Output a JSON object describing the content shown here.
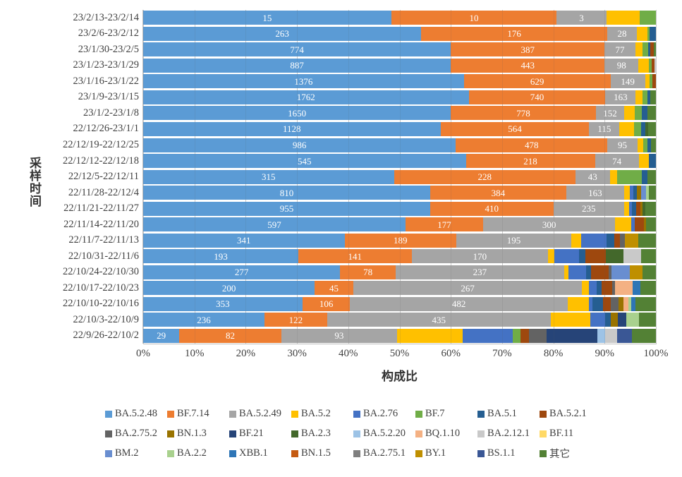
{
  "chart_data": {
    "type": "bar",
    "variant": "horizontal_stacked_100pct",
    "xlabel": "构成比",
    "ylabel": "采样时间",
    "xlim": [
      0,
      100
    ],
    "grid": true,
    "legend_position": "bottom",
    "x_ticks": [
      "0%",
      "10%",
      "20%",
      "30%",
      "40%",
      "50%",
      "60%",
      "70%",
      "80%",
      "90%",
      "100%"
    ],
    "labeled_series": [
      "BA.5.2.48",
      "BF.7.14",
      "BA.5.2.49"
    ],
    "series": [
      {
        "name": "BA.5.2.48",
        "color": "#5B9BD5"
      },
      {
        "name": "BF.7.14",
        "color": "#ED7D31"
      },
      {
        "name": "BA.5.2.49",
        "color": "#A5A5A5"
      },
      {
        "name": "BA.5.2",
        "color": "#FFC000"
      },
      {
        "name": "BA.2.76",
        "color": "#4472C4"
      },
      {
        "name": "BF.7",
        "color": "#70AD47"
      },
      {
        "name": "BA.5.1",
        "color": "#255E91"
      },
      {
        "name": "BA.5.2.1",
        "color": "#9E480E"
      },
      {
        "name": "BA.2.75.2",
        "color": "#636363"
      },
      {
        "name": "BN.1.3",
        "color": "#997300"
      },
      {
        "name": "BF.21",
        "color": "#264478"
      },
      {
        "name": "BA.2.3",
        "color": "#43682B"
      },
      {
        "name": "BA.5.2.20",
        "color": "#9DC3E6"
      },
      {
        "name": "BQ.1.10",
        "color": "#F4B183"
      },
      {
        "name": "BA.2.12.1",
        "color": "#C9C9C9"
      },
      {
        "name": "BF.11",
        "color": "#FFD966"
      },
      {
        "name": "BM.2",
        "color": "#698ED0"
      },
      {
        "name": "BA.2.2",
        "color": "#A9D18E"
      },
      {
        "name": "XBB.1",
        "color": "#2E75B6"
      },
      {
        "name": "BN.1.5",
        "color": "#C55A11"
      },
      {
        "name": "BA.2.75.1",
        "color": "#7F7F7F"
      },
      {
        "name": "BY.1",
        "color": "#BF8F00"
      },
      {
        "name": "BS.1.1",
        "color": "#3A5795"
      },
      {
        "name": "其它",
        "color": "#538135"
      }
    ],
    "rows": [
      {
        "period": "23/2/13-23/2/14",
        "counts": {
          "BA.5.2.48": 15,
          "BF.7.14": 10,
          "BA.5.2.49": 3,
          "BA.5.2": 2,
          "BF.7": 1
        }
      },
      {
        "period": "23/2/6-23/2/12",
        "counts": {
          "BA.5.2.48": 263,
          "BF.7.14": 176,
          "BA.5.2.49": 28,
          "BA.5.2": 10,
          "BF.7": 2,
          "BA.5.1": 6
        }
      },
      {
        "period": "23/1/30-23/2/5",
        "counts": {
          "BA.5.2.48": 774,
          "BF.7.14": 387,
          "BA.5.2.49": 77,
          "BA.5.2": 19,
          "BF.7": 13,
          "BA.5.1": 5,
          "BA.5.2.1": 10,
          "其它": 5
        }
      },
      {
        "period": "23/1/23-23/1/29",
        "counts": {
          "BA.5.2.48": 887,
          "BF.7.14": 443,
          "BA.5.2.49": 98,
          "BA.5.2": 30,
          "BF.7": 8,
          "BA.5.2.1": 7,
          "BA.2.12.1": 5
        }
      },
      {
        "period": "23/1/16-23/1/22",
        "counts": {
          "BA.5.2.48": 1376,
          "BF.7.14": 629,
          "BA.5.2.49": 149,
          "BA.5.2": 20,
          "BF.7": 12,
          "BA.5.2.1": 14
        }
      },
      {
        "period": "23/1/9-23/1/15",
        "counts": {
          "BA.5.2.48": 1762,
          "BF.7.14": 740,
          "BA.5.2.49": 163,
          "BA.5.2": 36,
          "BF.7": 28,
          "BA.5.1": 17,
          "其它": 29
        }
      },
      {
        "period": "23/1/2-23/1/8",
        "counts": {
          "BA.5.2.48": 1650,
          "BF.7.14": 778,
          "BA.5.2.49": 152,
          "BA.5.2": 55,
          "BF.7": 41,
          "BA.5.1": 27,
          "其它": 47
        }
      },
      {
        "period": "22/12/26-23/1/1",
        "counts": {
          "BA.5.2.48": 1128,
          "BF.7.14": 564,
          "BA.5.2.49": 115,
          "BA.5.2": 56,
          "BF.7": 27,
          "BA.5.1": 16,
          "BA.2.3": 10,
          "其它": 29
        }
      },
      {
        "period": "22/12/19-22/12/25",
        "counts": {
          "BA.5.2.48": 986,
          "BF.7.14": 478,
          "BA.5.2.49": 95,
          "BA.5.2": 19,
          "BF.7": 13,
          "BA.5.1": 10,
          "其它": 16
        }
      },
      {
        "period": "22/12/12-22/12/18",
        "counts": {
          "BA.5.2.48": 545,
          "BF.7.14": 218,
          "BA.5.2.49": 74,
          "BA.5.2": 17,
          "BA.5.1": 12
        }
      },
      {
        "period": "22/12/5-22/12/11",
        "counts": {
          "BA.5.2.48": 315,
          "BF.7.14": 228,
          "BA.5.2.49": 43,
          "BA.5.2": 9,
          "BF.7": 31,
          "BA.5.1": 7,
          "其它": 11
        }
      },
      {
        "period": "22/11/28-22/12/4",
        "counts": {
          "BA.5.2.48": 810,
          "BF.7.14": 384,
          "BA.5.2.49": 163,
          "BA.5.2": 16,
          "BA.2.76": 10,
          "BA.5.1": 10,
          "BN.1.3": 13,
          "BM.2": 13,
          "BA.2.2": 8,
          "其它": 20
        }
      },
      {
        "period": "22/11/21-22/11/27",
        "counts": {
          "BA.5.2.48": 955,
          "BF.7.14": 410,
          "BA.5.2.49": 235,
          "BA.5.2": 18,
          "BA.2.76": 8,
          "BA.5.1": 15,
          "BA.5.2.1": 13,
          "BN.1.3": 8,
          "BA.2.3": 8,
          "其它": 36
        }
      },
      {
        "period": "22/11/14-22/11/20",
        "counts": {
          "BA.5.2.48": 597,
          "BF.7.14": 177,
          "BA.5.2.49": 300,
          "BA.5.2": 37,
          "BA.2.76": 8,
          "BA.5.2.1": 20,
          "BN.1.3": 6,
          "其它": 22
        }
      },
      {
        "period": "22/11/7-22/11/13",
        "counts": {
          "BA.5.2.48": 341,
          "BF.7.14": 189,
          "BA.5.2.49": 195,
          "BA.5.2": 17,
          "BA.2.76": 43,
          "BA.5.1": 13,
          "BA.5.2.1": 9,
          "BA.2.75.2": 9,
          "BY.1": 22,
          "其它": 30
        }
      },
      {
        "period": "22/10/31-22/11/6",
        "counts": {
          "BA.5.2.48": 193,
          "BF.7.14": 141,
          "BA.5.2.49": 170,
          "BA.5.2": 8,
          "BA.2.76": 30,
          "BA.5.1": 8,
          "BA.5.2.1": 26,
          "BA.2.3": 22,
          "BA.2.12.1": 22,
          "其它": 18
        }
      },
      {
        "period": "22/10/24-22/10/30",
        "counts": {
          "BA.5.2.48": 277,
          "BF.7.14": 78,
          "BA.5.2.49": 237,
          "BA.5.2": 6,
          "BA.2.76": 25,
          "BA.5.1": 7,
          "BA.5.2.1": 25,
          "BA.2.75.2": 4,
          "BM.2": 25,
          "BY.1": 18,
          "其它": 19
        }
      },
      {
        "period": "22/10/17-22/10/23",
        "counts": {
          "BA.5.2.48": 200,
          "BF.7.14": 45,
          "BA.5.2.49": 267,
          "BA.5.2": 8,
          "BA.2.76": 9,
          "BA.5.1": 6,
          "BA.5.2.1": 12,
          "BA.2.75.2": 3,
          "BQ.1.10": 21,
          "XBB.1": 9,
          "其它": 18
        }
      },
      {
        "period": "22/10/10-22/10/16",
        "counts": {
          "BA.5.2.48": 353,
          "BF.7.14": 106,
          "BA.5.2.49": 482,
          "BA.5.2": 48,
          "BA.2.76": 8,
          "BA.5.1": 23,
          "BA.5.2.1": 17,
          "BA.2.75.2": 17,
          "BN.1.3": 11,
          "BQ.1.10": 11,
          "BA.2.2": 6,
          "XBB.1": 10,
          "其它": 45
        }
      },
      {
        "period": "22/10/3-22/10/9",
        "counts": {
          "BA.5.2.48": 236,
          "BF.7.14": 122,
          "BA.5.2.49": 435,
          "BA.5.2": 78,
          "BA.2.76": 28,
          "BA.5.1": 11,
          "BN.1.3": 14,
          "BF.21": 16,
          "BA.2.2": 25,
          "其它": 33
        }
      },
      {
        "period": "22/9/26-22/10/2",
        "counts": {
          "BA.5.2.48": 29,
          "BF.7.14": 82,
          "BA.5.2.49": 93,
          "BA.5.2": 53,
          "BA.2.76": 40,
          "BF.7": 6,
          "BA.5.2.1": 7,
          "BA.2.75.2": 14,
          "BF.21": 41,
          "BA.5.2.20": 6,
          "BA.2.12.1": 10,
          "BS.1.1": 12,
          "其它": 19
        }
      }
    ]
  }
}
